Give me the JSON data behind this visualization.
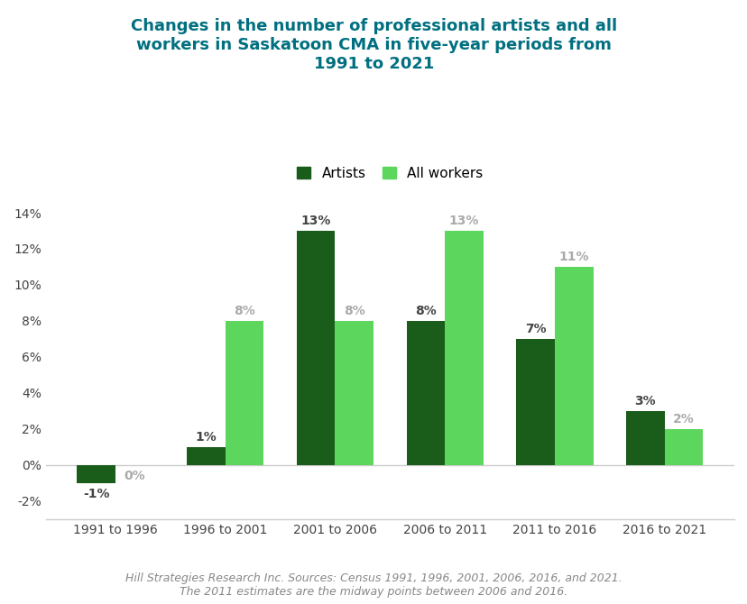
{
  "title": "Changes in the number of professional artists and all\nworkers in Saskatoon CMA in five-year periods from\n1991 to 2021",
  "title_color": "#007080",
  "categories": [
    "1991 to 1996",
    "1996 to 2001",
    "2001 to 2006",
    "2006 to 2011",
    "2011 to 2016",
    "2016 to 2021"
  ],
  "artists": [
    -1,
    1,
    13,
    8,
    7,
    3
  ],
  "all_workers": [
    0,
    8,
    8,
    13,
    11,
    2
  ],
  "artist_color": "#1a5c1a",
  "worker_color": "#5cd65c",
  "ylim": [
    -3,
    15
  ],
  "yticks": [
    -2,
    0,
    2,
    4,
    6,
    8,
    10,
    12,
    14
  ],
  "legend_labels": [
    "Artists",
    "All workers"
  ],
  "footnote_line1": "Hill Strategies Research Inc. Sources: Census 1991, 1996, 2001, 2006, 2016, and 2021.",
  "footnote_line2": "The 2011 estimates are the midway points between 2006 and 2016.",
  "footnote_color": "#888888",
  "background_color": "#ffffff",
  "bar_width": 0.35,
  "artist_label_color": "#444444",
  "worker_label_color": "#aaaaaa",
  "label_fontsize": 10,
  "title_fontsize": 13,
  "tick_fontsize": 10,
  "legend_fontsize": 11
}
